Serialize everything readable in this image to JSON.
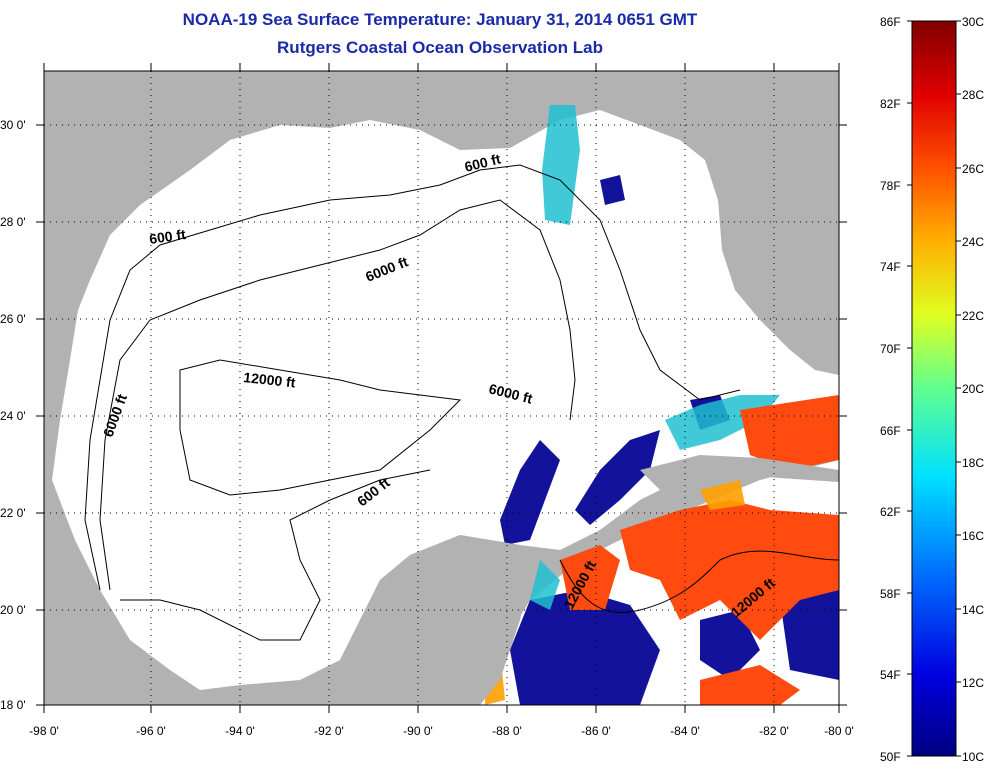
{
  "title": "NOAA-19 Sea Surface Temperature:  January 31, 2014 0651 GMT",
  "subtitle": "Rutgers Coastal Ocean Observation Lab",
  "map": {
    "lat_labels": [
      "30 0'",
      "28 0'",
      "26 0'",
      "24 0'",
      "22 0'",
      "20 0'",
      "18 0'"
    ],
    "lon_labels": [
      "-98 0'",
      "-96 0'",
      "-94 0'",
      "-92 0'",
      "-90 0'",
      "-88 0'",
      "-86 0'",
      "-84 0'",
      "-82 0'",
      "-80 0'"
    ],
    "contour_labels": {
      "c600_nw": "600 ft",
      "c600_ne": "600 ft",
      "c6000_n": "6000 ft",
      "c6000_w": "6000 ft",
      "c12000": "12000 ft",
      "c6000_e": "6000 ft",
      "c600_s": "600 ft",
      "c12000_yuc": "12000 ft",
      "c12000_car": "12000 ft"
    },
    "colors": {
      "land": "#b2b2b2",
      "water": "#ffffff",
      "cold": "#1a1aa0",
      "warm": "#ff4a10"
    }
  },
  "colorbar": {
    "f_labels": [
      "86F",
      "82F",
      "78F",
      "74F",
      "70F",
      "66F",
      "62F",
      "58F",
      "54F",
      "50F"
    ],
    "c_labels": [
      "30C",
      "28C",
      "26C",
      "24C",
      "22C",
      "20C",
      "18C",
      "16C",
      "14C",
      "12C",
      "10C"
    ]
  }
}
